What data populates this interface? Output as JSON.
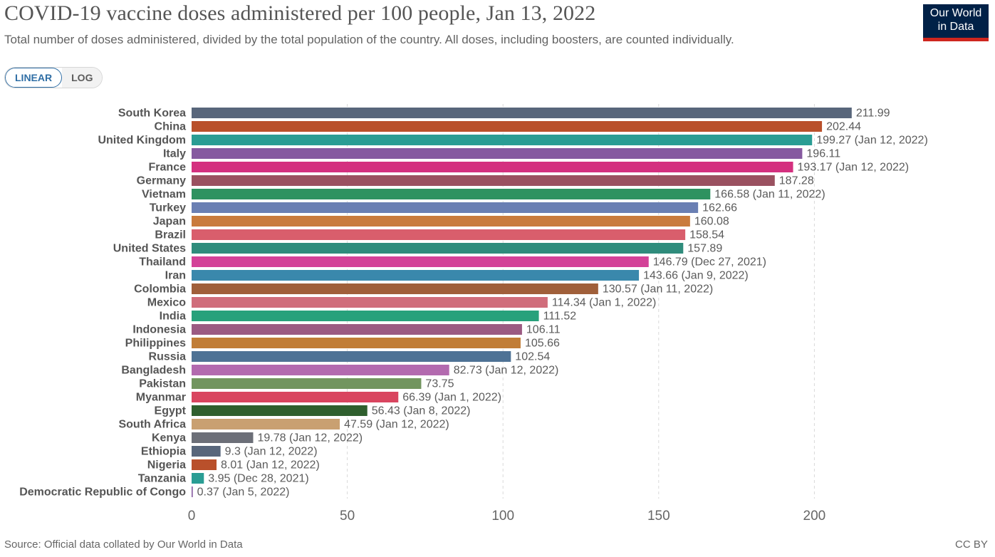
{
  "header": {
    "title": "COVID-19 vaccine doses administered per 100 people, Jan 13, 2022",
    "subtitle": "Total number of doses administered, divided by the total population of the country. All doses, including boosters, are counted individually.",
    "logo_line1": "Our World",
    "logo_line2": "in Data"
  },
  "scale_toggle": {
    "linear_label": "LINEAR",
    "log_label": "LOG",
    "selected": "linear"
  },
  "footer": {
    "source": "Source: Official data collated by Our World in Data",
    "license": "CC BY"
  },
  "chart_data": {
    "type": "bar",
    "orientation": "horizontal",
    "xlim": [
      0,
      212
    ],
    "xticks": [
      0,
      50,
      100,
      150,
      200
    ],
    "grid": true,
    "categories": [
      "South Korea",
      "China",
      "United Kingdom",
      "Italy",
      "France",
      "Germany",
      "Vietnam",
      "Turkey",
      "Japan",
      "Brazil",
      "United States",
      "Thailand",
      "Iran",
      "Colombia",
      "Mexico",
      "India",
      "Indonesia",
      "Philippines",
      "Russia",
      "Bangladesh",
      "Pakistan",
      "Myanmar",
      "Egypt",
      "South Africa",
      "Kenya",
      "Ethiopia",
      "Nigeria",
      "Tanzania",
      "Democratic Republic of Congo"
    ],
    "values": [
      211.99,
      202.44,
      199.27,
      196.11,
      193.17,
      187.28,
      166.58,
      162.66,
      160.08,
      158.54,
      157.89,
      146.79,
      143.66,
      130.57,
      114.34,
      111.52,
      106.11,
      105.66,
      102.54,
      82.73,
      73.75,
      66.39,
      56.43,
      47.59,
      19.78,
      9.3,
      8.01,
      3.95,
      0.37
    ],
    "value_labels": [
      "211.99",
      "202.44",
      "199.27 (Jan 12, 2022)",
      "196.11",
      "193.17 (Jan 12, 2022)",
      "187.28",
      "166.58 (Jan 11, 2022)",
      "162.66",
      "160.08",
      "158.54",
      "157.89",
      "146.79 (Dec 27, 2021)",
      "143.66 (Jan 9, 2022)",
      "130.57 (Jan 11, 2022)",
      "114.34 (Jan 1, 2022)",
      "111.52",
      "106.11",
      "105.66",
      "102.54",
      "82.73 (Jan 12, 2022)",
      "73.75",
      "66.39 (Jan 1, 2022)",
      "56.43 (Jan 8, 2022)",
      "47.59 (Jan 12, 2022)",
      "19.78 (Jan 12, 2022)",
      "9.3 (Jan 12, 2022)",
      "8.01 (Jan 12, 2022)",
      "3.95 (Dec 28, 2021)",
      "0.37 (Jan 5, 2022)"
    ],
    "colors": [
      "#58667b",
      "#b9502b",
      "#2a9d94",
      "#865aa0",
      "#d4307f",
      "#9a5160",
      "#2e9260",
      "#6a7fb3",
      "#c97b3d",
      "#d95e6c",
      "#2f8c7c",
      "#d34298",
      "#3a88ac",
      "#a05f3a",
      "#d06d7b",
      "#27a17b",
      "#9b5a82",
      "#c17d37",
      "#4e7295",
      "#b36aaf",
      "#72955f",
      "#d9455f",
      "#2f5f2e",
      "#c9a071",
      "#6c6f78",
      "#58667b",
      "#b9502b",
      "#2a9d94",
      "#865aa0"
    ]
  }
}
